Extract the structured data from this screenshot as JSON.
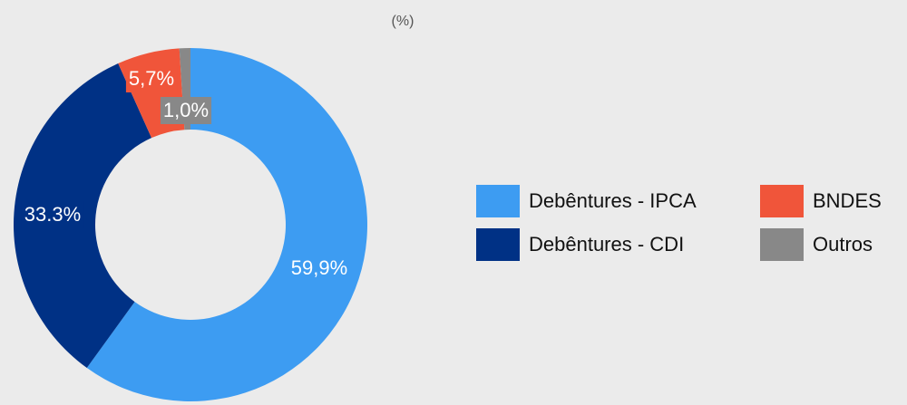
{
  "chart_data": {
    "type": "donut",
    "title": "(%)",
    "categories": [
      "Debêntures - IPCA",
      "Debêntures - CDI",
      "BNDES",
      "Outros"
    ],
    "values": [
      59.9,
      33.3,
      5.7,
      1.0
    ],
    "value_labels": [
      "59,9%",
      "33.3%",
      "5,7%",
      "1,0%"
    ],
    "colors": [
      "#3d9cf2",
      "#003185",
      "#f0553a",
      "#888888"
    ],
    "legend": "right"
  }
}
